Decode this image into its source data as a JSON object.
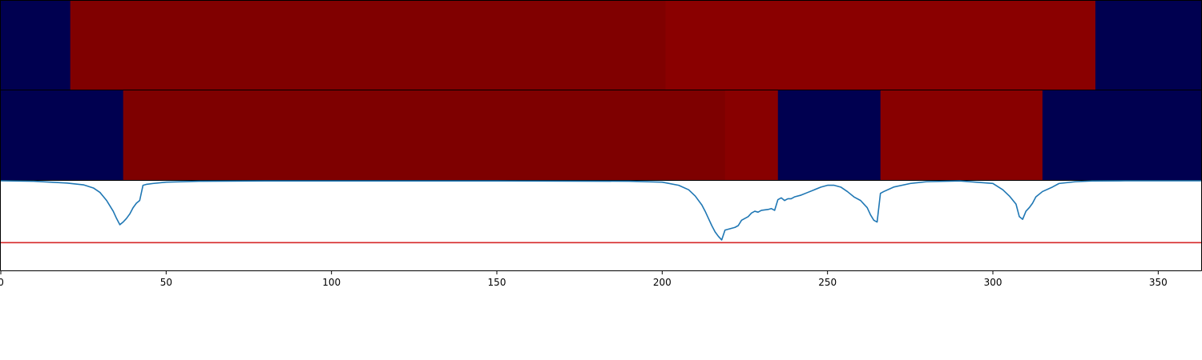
{
  "chart_data": [
    {
      "type": "heatmap",
      "x_range": [
        0,
        363
      ],
      "grid": false,
      "colors": {
        "low": "#000050",
        "mid_high": "#800000",
        "high": "#8a0000"
      },
      "segments": [
        {
          "start": 0,
          "end": 21,
          "level": "low"
        },
        {
          "start": 21,
          "end": 201,
          "level": "mid_high"
        },
        {
          "start": 201,
          "end": 331,
          "level": "high"
        },
        {
          "start": 331,
          "end": 363,
          "level": "low"
        }
      ]
    },
    {
      "type": "heatmap",
      "x_range": [
        0,
        363
      ],
      "grid": false,
      "colors": {
        "low": "#000050",
        "mid_high": "#7e0000",
        "high": "#880000"
      },
      "segments": [
        {
          "start": 0,
          "end": 37,
          "level": "low"
        },
        {
          "start": 37,
          "end": 219,
          "level": "mid_high"
        },
        {
          "start": 219,
          "end": 235,
          "level": "high"
        },
        {
          "start": 235,
          "end": 266,
          "level": "low"
        },
        {
          "start": 266,
          "end": 315,
          "level": "high"
        },
        {
          "start": 315,
          "end": 363,
          "level": "low"
        }
      ]
    },
    {
      "type": "line",
      "xlim": [
        0,
        363
      ],
      "ylim": [
        0,
        1
      ],
      "grid": false,
      "xticks": [
        "0",
        "50",
        "100",
        "150",
        "200",
        "250",
        "300",
        "350"
      ],
      "xtick_values": [
        0,
        50,
        100,
        150,
        200,
        250,
        300,
        350
      ],
      "threshold": 0.31,
      "colors": {
        "line": "#1f77b4",
        "threshold": "#d62728"
      },
      "series": [
        {
          "x": [
            0,
            10,
            20,
            25,
            28,
            30,
            32,
            34,
            35,
            36,
            37,
            38,
            39,
            40,
            41,
            42,
            43,
            44,
            46,
            50,
            60,
            80,
            100,
            150,
            190,
            200,
            205,
            208,
            210,
            212,
            213,
            214,
            215,
            216,
            217,
            218,
            219,
            220,
            222,
            223,
            224,
            226,
            227,
            228,
            229,
            230,
            232,
            233,
            234,
            235,
            236,
            237,
            238,
            239,
            240,
            242,
            244,
            246,
            248,
            250,
            252,
            254,
            256,
            258,
            260,
            262,
            263,
            264,
            265,
            266,
            267,
            270,
            275,
            280,
            290,
            300,
            303,
            305,
            307,
            308,
            309,
            310,
            311,
            312,
            313,
            315,
            318,
            320,
            325,
            330,
            340,
            363
          ],
          "y": [
            1.0,
            0.995,
            0.975,
            0.955,
            0.92,
            0.87,
            0.78,
            0.66,
            0.58,
            0.51,
            0.54,
            0.58,
            0.63,
            0.7,
            0.75,
            0.78,
            0.95,
            0.96,
            0.97,
            0.985,
            0.995,
            0.998,
            0.998,
            0.998,
            0.995,
            0.985,
            0.95,
            0.9,
            0.83,
            0.73,
            0.66,
            0.58,
            0.5,
            0.43,
            0.38,
            0.34,
            0.45,
            0.46,
            0.48,
            0.5,
            0.56,
            0.6,
            0.64,
            0.66,
            0.65,
            0.67,
            0.68,
            0.69,
            0.67,
            0.79,
            0.81,
            0.78,
            0.8,
            0.8,
            0.82,
            0.84,
            0.87,
            0.9,
            0.93,
            0.95,
            0.95,
            0.93,
            0.88,
            0.82,
            0.78,
            0.7,
            0.62,
            0.56,
            0.54,
            0.86,
            0.88,
            0.93,
            0.97,
            0.99,
            0.998,
            0.97,
            0.9,
            0.83,
            0.74,
            0.6,
            0.57,
            0.66,
            0.7,
            0.75,
            0.82,
            0.88,
            0.93,
            0.97,
            0.99,
            0.998,
            1.0,
            1.0
          ]
        }
      ]
    }
  ]
}
